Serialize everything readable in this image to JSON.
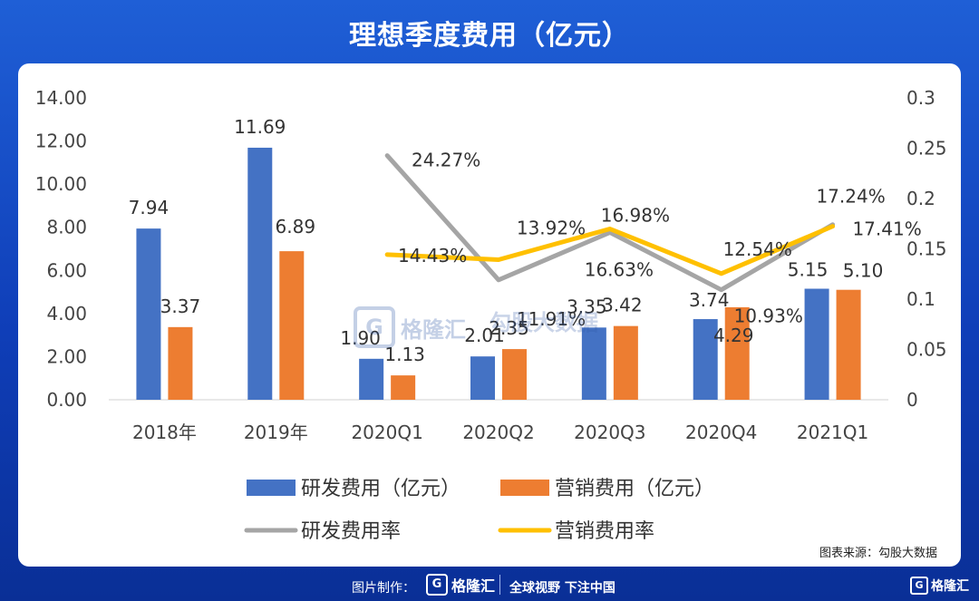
{
  "page": {
    "title": "理想季度费用（亿元）",
    "source": "图表来源：勾股大数据",
    "footer_made": "图片制作：",
    "footer_brand": "格隆汇",
    "footer_slogan": "全球视野 下注中国",
    "corner_brand": "格隆汇",
    "logo_letter": "G",
    "watermark_a": "格隆汇",
    "watermark_b": "勾股大数据"
  },
  "chart_data": {
    "type": "bar",
    "categories": [
      "2018年",
      "2019年",
      "2020Q1",
      "2020Q2",
      "2020Q3",
      "2020Q4",
      "2021Q1"
    ],
    "series": [
      {
        "name": "研发费用（亿元）",
        "kind": "bar",
        "axis": "left",
        "color": "#4472c4",
        "values": [
          7.94,
          11.69,
          1.9,
          2.01,
          3.35,
          3.74,
          5.15
        ],
        "labels": [
          "7.94",
          "11.69",
          "1.90",
          "2.01",
          "3.35",
          "3.74",
          "5.15"
        ]
      },
      {
        "name": "营销费用（亿元）",
        "kind": "bar",
        "axis": "left",
        "color": "#ed7d31",
        "values": [
          3.37,
          6.89,
          1.13,
          2.35,
          3.42,
          4.29,
          5.1
        ],
        "labels": [
          "3.37",
          "6.89",
          "1.13",
          "2.35",
          "3.42",
          "4.29",
          "5.10"
        ]
      },
      {
        "name": "研发费用率",
        "kind": "line",
        "axis": "right",
        "color": "#a5a5a5",
        "values": [
          null,
          null,
          0.2427,
          0.1191,
          0.1663,
          0.1093,
          0.1741
        ],
        "labels": [
          null,
          null,
          "24.27%",
          "11.91%",
          "16.63%",
          "10.93%",
          "17.41%"
        ]
      },
      {
        "name": "营销费用率",
        "kind": "line",
        "axis": "right",
        "color": "#ffc000",
        "values": [
          null,
          null,
          0.1443,
          0.1392,
          0.1698,
          0.1254,
          0.1724
        ],
        "labels": [
          null,
          null,
          "14.43%",
          "13.92%",
          "16.98%",
          "12.54%",
          "17.24%"
        ]
      }
    ],
    "y_left": {
      "min": 0,
      "max": 14,
      "ticks": [
        "0.00",
        "2.00",
        "4.00",
        "6.00",
        "8.00",
        "10.00",
        "12.00",
        "14.00"
      ]
    },
    "y_right": {
      "min": 0,
      "max": 0.3,
      "ticks": [
        "0",
        "0.05",
        "0.1",
        "0.15",
        "0.2",
        "0.25",
        "0.3"
      ]
    },
    "grid": false,
    "legend": "bottom"
  }
}
